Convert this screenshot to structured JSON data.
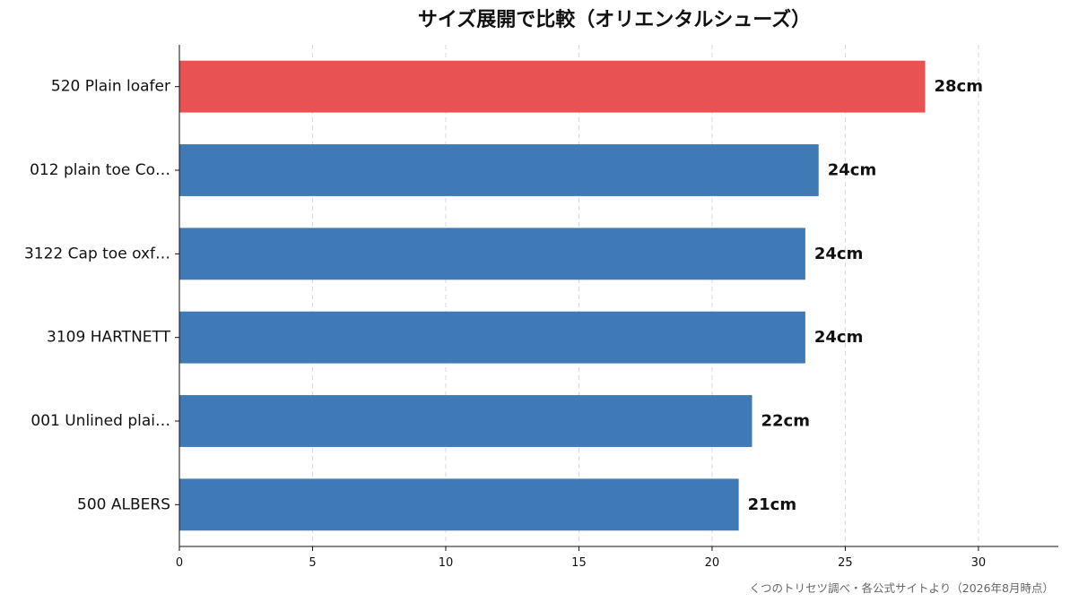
{
  "chart_data": {
    "type": "bar",
    "orientation": "horizontal",
    "title": "サイズ展開で比較（オリエンタルシューズ）",
    "categories": [
      "520 Plain loafer",
      "012 plain toe Co…",
      "3122 Cap toe oxf…",
      "3109 HARTNETT",
      "001 Unlined plai…",
      "500 ALBERS"
    ],
    "values": [
      28,
      24,
      23.5,
      23.5,
      21.5,
      21
    ],
    "value_labels": [
      "28cm",
      "24cm",
      "24cm",
      "24cm",
      "22cm",
      "21cm"
    ],
    "highlight_index": 0,
    "colors": {
      "highlight": "#e85252",
      "default": "#3f7ab6"
    },
    "xlim": [
      0,
      33
    ],
    "xticks": [
      0,
      5,
      10,
      15,
      20,
      25,
      30
    ],
    "xlabel": "",
    "ylabel": "",
    "grid": {
      "x": true,
      "style": "dashed"
    },
    "legend": "none"
  },
  "source_note": "くつのトリセツ調べ・各公式サイトより（2026年8月時点）"
}
